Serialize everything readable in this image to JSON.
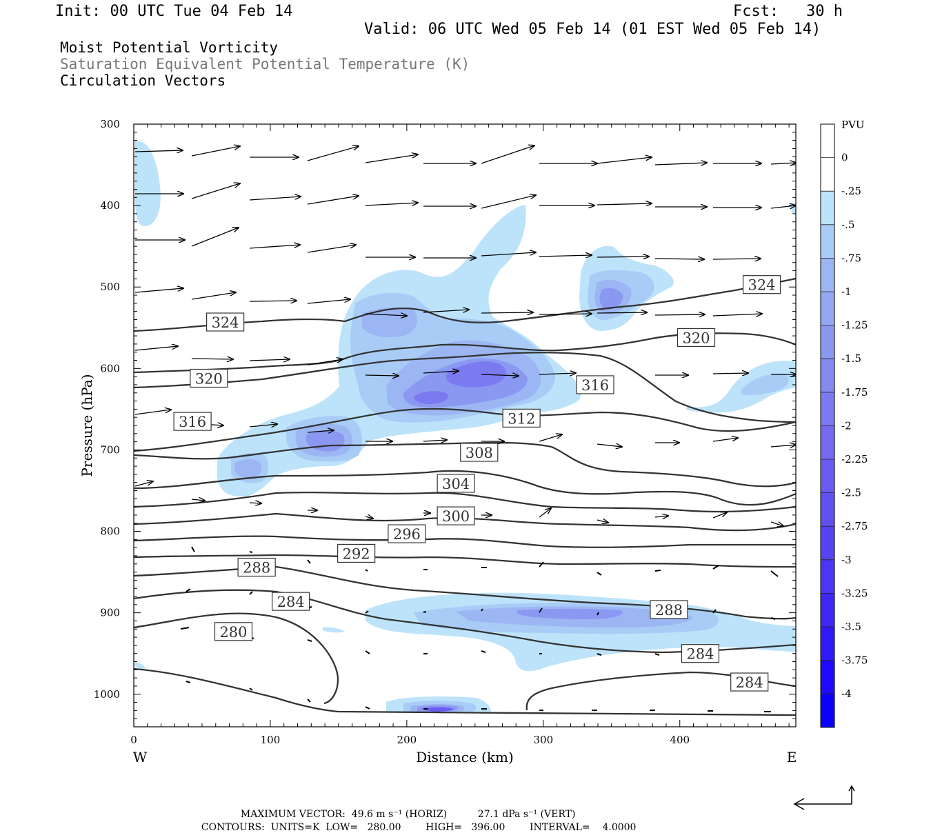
{
  "header": {
    "init": "Init: 00 UTC Tue 04 Feb 14",
    "fcst": "Fcst:   30 h",
    "valid": "Valid: 06 UTC Wed 05 Feb 14 (01 EST Wed 05 Feb 14)",
    "field1": "Moist Potential Vorticity",
    "field2": "Saturation Equivalent Potential Temperature (K)",
    "field3": "Circulation Vectors"
  },
  "footer": {
    "max_vector_label": "MAXIMUM VECTOR:",
    "max_horiz": "49.6 m s⁻¹ (HORIZ)",
    "max_vert": "27.1 dPa s⁻¹ (VERT)",
    "contours_label": "CONTOURS:",
    "units": "UNITS=K",
    "low": "LOW=   280.00",
    "high": "HIGH=   396.00",
    "interval": "INTERVAL=    4.0000"
  },
  "chart_data": {
    "type": "contour",
    "xlabel": "Distance (km)",
    "ylabel": "Pressure (hPa)",
    "xlim": [
      0,
      485
    ],
    "ylim": [
      1040,
      300
    ],
    "x_ticks": [
      0,
      100,
      200,
      300,
      400
    ],
    "y_ticks": [
      300,
      400,
      500,
      600,
      700,
      800,
      900,
      1000
    ],
    "x_end_labels": {
      "left": "W",
      "right": "E"
    },
    "colorbar": {
      "label": "PVU",
      "levels": [
        "0",
        "-.25",
        "-.5",
        "-.75",
        "-1",
        "-1.25",
        "-1.5",
        "-1.75",
        "-2",
        "-2.25",
        "-2.5",
        "-2.75",
        "-3",
        "-3.25",
        "-3.5",
        "-3.75",
        "-4"
      ],
      "colors": [
        "#ffffff",
        "#ffffff",
        "#bde3fb",
        "#a9ccf7",
        "#9cb6f3",
        "#93a7f3",
        "#8b98f1",
        "#8489f0",
        "#7c7af0",
        "#736af0",
        "#6a5bf1",
        "#6150f2",
        "#5644f3",
        "#4a36f4",
        "#3d28f6",
        "#301af8",
        "#1f0afb",
        "#0a00ff"
      ]
    },
    "contour_labels": [
      {
        "value": "280",
        "x": 73,
        "p": 923
      },
      {
        "value": "284",
        "x": 115,
        "p": 886
      },
      {
        "value": "284",
        "x": 415,
        "p": 950
      },
      {
        "value": "284",
        "x": 451,
        "p": 985
      },
      {
        "value": "288",
        "x": 90,
        "p": 844
      },
      {
        "value": "288",
        "x": 392,
        "p": 896
      },
      {
        "value": "292",
        "x": 163,
        "p": 827
      },
      {
        "value": "296",
        "x": 200,
        "p": 803
      },
      {
        "value": "300",
        "x": 236,
        "p": 781
      },
      {
        "value": "304",
        "x": 236,
        "p": 741
      },
      {
        "value": "308",
        "x": 253,
        "p": 703
      },
      {
        "value": "312",
        "x": 284,
        "p": 661
      },
      {
        "value": "316",
        "x": 43,
        "p": 665
      },
      {
        "value": "316",
        "x": 338,
        "p": 620
      },
      {
        "value": "320",
        "x": 55,
        "p": 612
      },
      {
        "value": "320",
        "x": 412,
        "p": 562
      },
      {
        "value": "324",
        "x": 67,
        "p": 543
      },
      {
        "value": "324",
        "x": 460,
        "p": 497
      }
    ]
  }
}
